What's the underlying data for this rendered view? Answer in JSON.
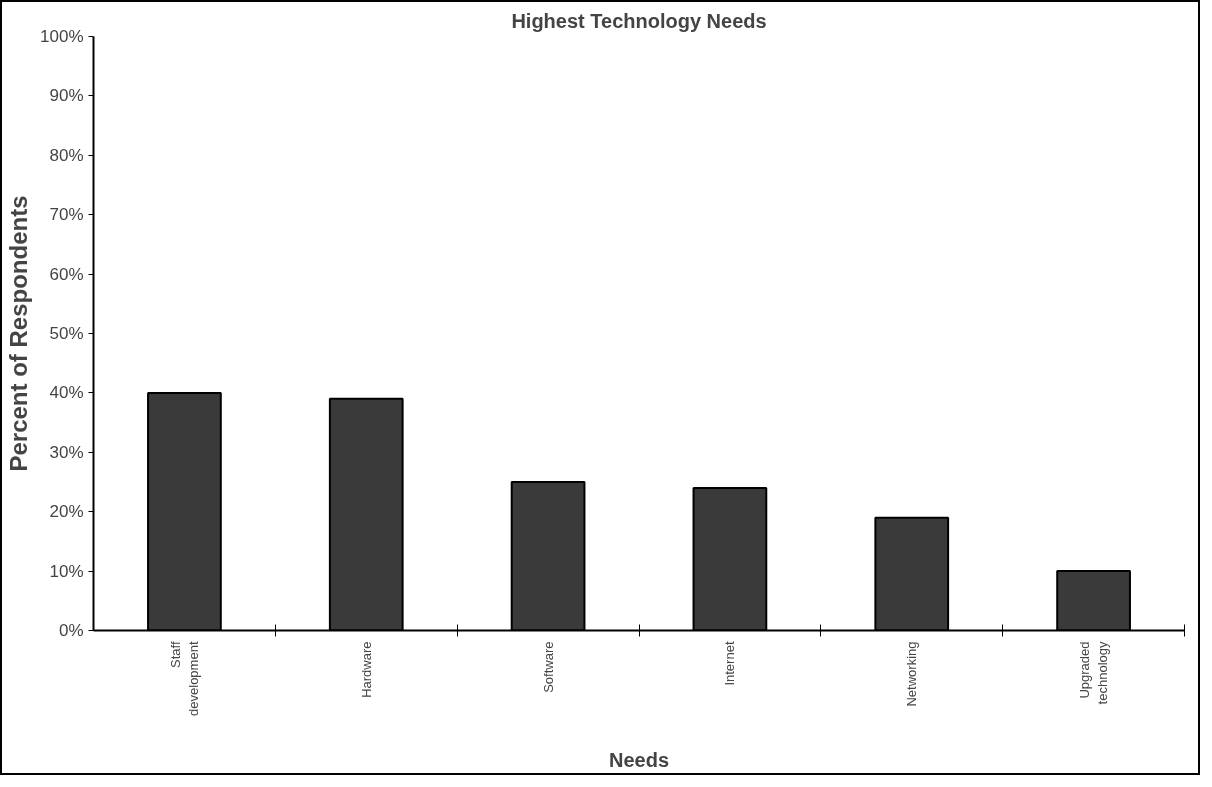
{
  "chart_data": {
    "type": "bar",
    "title": "Highest Technology Needs",
    "xlabel": "Needs",
    "ylabel": "Percent of Respondents",
    "categories": [
      "Staff\ndevelopment",
      "Hardware",
      "Software",
      "Internet",
      "Networking",
      "Upgraded\ntechnology"
    ],
    "values": [
      40,
      39,
      25,
      24,
      19,
      10
    ],
    "color": "#3a3a3a",
    "ylim": [
      0,
      100
    ],
    "yticks": [
      {
        "value": 0,
        "label": "0%"
      },
      {
        "value": 10,
        "label": "10%"
      },
      {
        "value": 20,
        "label": "20%"
      },
      {
        "value": 30,
        "label": "30%"
      },
      {
        "value": 40,
        "label": "40%"
      },
      {
        "value": 50,
        "label": "50%"
      },
      {
        "value": 60,
        "label": "60%"
      },
      {
        "value": 70,
        "label": "70%"
      },
      {
        "value": 80,
        "label": "80%"
      },
      {
        "value": 90,
        "label": "90%"
      },
      {
        "value": 100,
        "label": "100%"
      }
    ],
    "grid": false
  }
}
